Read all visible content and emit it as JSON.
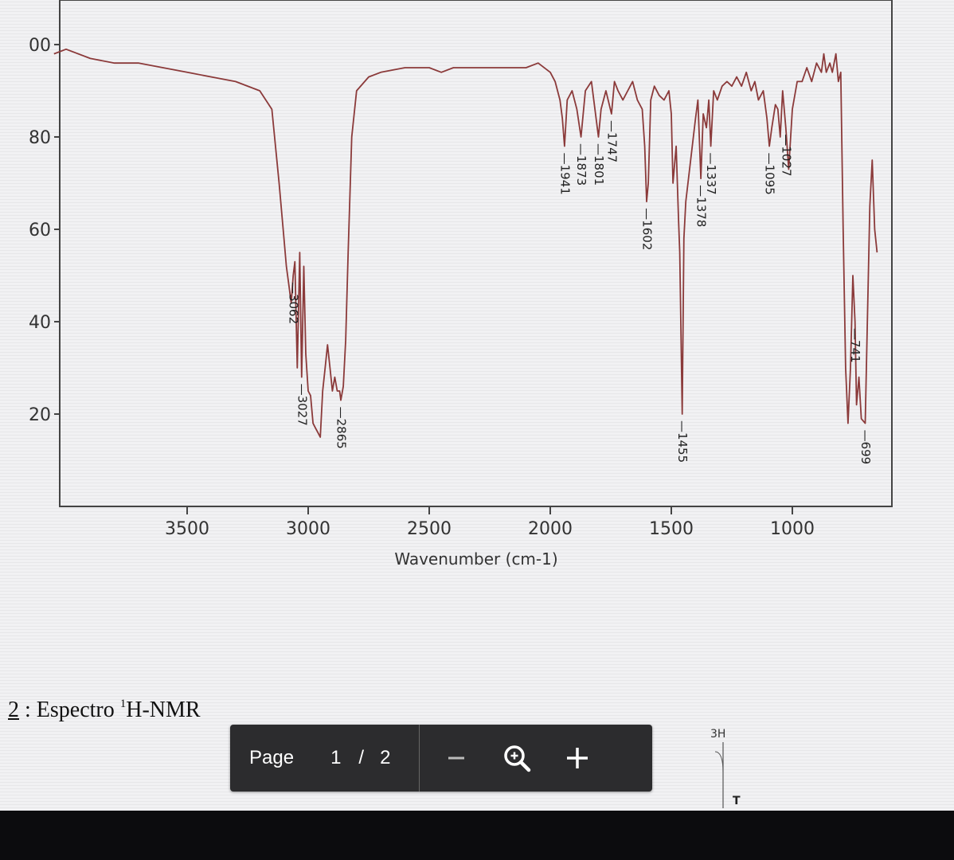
{
  "chart_data": {
    "type": "line",
    "title": "",
    "xlabel": "Wavenumber (cm-1)",
    "ylabel": "",
    "xlim": [
      4050,
      650
    ],
    "ylim": [
      0,
      105
    ],
    "x_reversed": true,
    "grid": false,
    "x_ticks": [
      "3500",
      "3000",
      "2500",
      "2000",
      "1500",
      "1000"
    ],
    "y_ticks": [
      "00",
      "80",
      "60",
      "40",
      "20"
    ],
    "series": [
      {
        "color": "#8b3a3a",
        "x": [
          4050,
          4000,
          3900,
          3800,
          3700,
          3600,
          3500,
          3400,
          3300,
          3200,
          3150,
          3120,
          3100,
          3090,
          3080,
          3070,
          3062,
          3055,
          3045,
          3035,
          3027,
          3018,
          3010,
          3000,
          2990,
          2980,
          2970,
          2960,
          2950,
          2940,
          2930,
          2920,
          2910,
          2900,
          2890,
          2880,
          2870,
          2865,
          2855,
          2845,
          2835,
          2820,
          2800,
          2750,
          2700,
          2600,
          2500,
          2450,
          2400,
          2300,
          2200,
          2100,
          2050,
          2000,
          1980,
          1960,
          1950,
          1941,
          1930,
          1910,
          1890,
          1873,
          1855,
          1830,
          1801,
          1790,
          1770,
          1747,
          1735,
          1720,
          1700,
          1680,
          1660,
          1640,
          1620,
          1610,
          1602,
          1595,
          1585,
          1570,
          1550,
          1530,
          1510,
          1500,
          1493,
          1480,
          1470,
          1465,
          1455,
          1448,
          1440,
          1420,
          1400,
          1390,
          1378,
          1368,
          1355,
          1345,
          1337,
          1325,
          1310,
          1290,
          1270,
          1250,
          1230,
          1210,
          1190,
          1170,
          1155,
          1140,
          1120,
          1105,
          1095,
          1085,
          1070,
          1060,
          1050,
          1040,
          1027,
          1015,
          1000,
          980,
          960,
          940,
          920,
          900,
          880,
          870,
          860,
          845,
          835,
          820,
          810,
          800,
          790,
          780,
          770,
          760,
          750,
          741,
          735,
          725,
          715,
          699,
          690,
          680,
          670,
          660,
          650
        ],
        "y": [
          98,
          99,
          97,
          96,
          96,
          95,
          94,
          93,
          92,
          90,
          86,
          70,
          58,
          52,
          48,
          44,
          50,
          53,
          30,
          55,
          28,
          52,
          33,
          25,
          24,
          18,
          17,
          16,
          15,
          25,
          30,
          35,
          30,
          25,
          28,
          25,
          25,
          23,
          26,
          36,
          55,
          80,
          90,
          93,
          94,
          95,
          95,
          94,
          95,
          95,
          95,
          95,
          96,
          94,
          92,
          88,
          84,
          78,
          88,
          90,
          86,
          80,
          90,
          92,
          80,
          86,
          90,
          85,
          92,
          90,
          88,
          90,
          92,
          88,
          86,
          78,
          66,
          70,
          88,
          91,
          89,
          88,
          90,
          85,
          70,
          78,
          62,
          55,
          20,
          58,
          66,
          75,
          84,
          88,
          71,
          85,
          82,
          88,
          78,
          90,
          88,
          91,
          92,
          91,
          93,
          91,
          94,
          90,
          92,
          88,
          90,
          84,
          78,
          82,
          87,
          86,
          80,
          90,
          82,
          73,
          86,
          92,
          92,
          95,
          92,
          96,
          94,
          98,
          94,
          96,
          94,
          98,
          92,
          94,
          60,
          30,
          18,
          30,
          50,
          40,
          22,
          28,
          19,
          18,
          40,
          65,
          75,
          60,
          55
        ]
      }
    ],
    "annotations": [
      "3062",
      "3027",
      "2865",
      "1941",
      "1873",
      "1801",
      "1747",
      "1602",
      "1455",
      "1378",
      "1337",
      "1095",
      "1027",
      "699",
      "741"
    ]
  },
  "document": {
    "section_caption": {
      "number": "2",
      "sep": " : Espectro ",
      "superscript": "1",
      "text": "H-NMR"
    },
    "nmr_preview": {
      "label_3h": "3H",
      "label_t": "T"
    }
  },
  "toolbar": {
    "page_label": "Page",
    "current_page": "1",
    "separator": "/",
    "total_pages": "2",
    "icons": {
      "zoom_out": "minus-icon",
      "zoom_reset": "zoom-magnifier-icon",
      "zoom_in": "plus-icon"
    }
  },
  "colors": {
    "spectrum_line": "#8b3a3a",
    "toolbar_bg": "#2c2c2e",
    "taskbar_bg": "#0c0c0e"
  }
}
